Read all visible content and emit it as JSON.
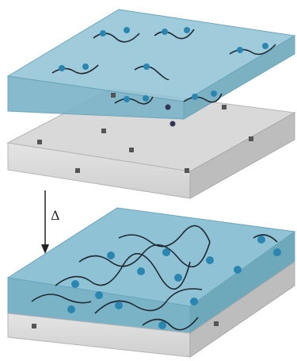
{
  "diagram": {
    "arrow_label": "Δ"
  }
}
